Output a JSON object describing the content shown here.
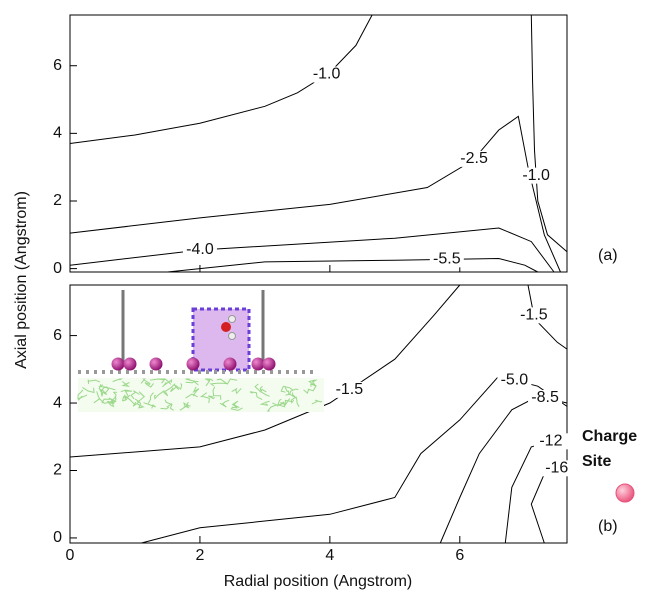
{
  "figure": {
    "xlabel": "Radial position (Angstrom)",
    "ylabel": "Axial position (Angstrom)",
    "legend_lines": [
      "Charge",
      "Site"
    ],
    "legend_color": "#e8507a"
  },
  "chart_data": [
    {
      "type": "contour",
      "panel_label": "(a)",
      "color": "#000000",
      "xlim": [
        0,
        7.65
      ],
      "ylim": [
        -0.1,
        7.5
      ],
      "xticks": [
        0,
        2,
        4,
        6
      ],
      "yticks": [
        0,
        2,
        4,
        6
      ],
      "contours": [
        {
          "level": {
            "value": -1,
            "label": "-1.0"
          },
          "x": [
            0,
            1,
            2,
            3,
            3.5,
            4,
            4.4,
            4.65
          ],
          "y": [
            3.7,
            3.95,
            4.3,
            4.8,
            5.2,
            5.8,
            6.6,
            7.5
          ]
        },
        {
          "level": {
            "value": -2.5,
            "label": "-2.5"
          },
          "x": [
            0,
            2,
            4,
            5.5,
            6.2,
            6.6,
            6.9,
            7.05,
            7.3,
            7.55
          ],
          "y": [
            1.05,
            1.5,
            1.9,
            2.4,
            3.2,
            4.1,
            4.5,
            3.0,
            1.0,
            -0.1
          ]
        },
        {
          "level": {
            "value": -1,
            "label": "-1.0"
          },
          "x": [
            7.1,
            7.12,
            7.15,
            7.2,
            7.35,
            7.65
          ],
          "y": [
            7.5,
            5.5,
            3.5,
            2.0,
            1.0,
            0.5
          ]
        },
        {
          "level": {
            "value": -4,
            "label": "-4.0"
          },
          "x": [
            0,
            2,
            5,
            6.6,
            7.1,
            7.45
          ],
          "y": [
            0.1,
            0.55,
            0.9,
            1.2,
            0.8,
            -0.1
          ]
        },
        {
          "level": {
            "value": -5.5,
            "label": "-5.5"
          },
          "x": [
            1.5,
            3,
            5,
            6.6,
            7.0,
            7.2
          ],
          "y": [
            -0.1,
            0.2,
            0.25,
            0.3,
            0.1,
            -0.1
          ]
        }
      ]
    },
    {
      "type": "contour",
      "panel_label": "(b)",
      "color": "#000000",
      "xlim": [
        0,
        7.65
      ],
      "ylim": [
        -0.15,
        7.5
      ],
      "xticks": [
        0,
        2,
        4,
        6
      ],
      "yticks": [
        0,
        2,
        4,
        6
      ],
      "contours": [
        {
          "level": {
            "value": -1.5,
            "label": "-1.5"
          },
          "x": [
            0,
            2,
            3,
            4,
            5,
            5.6,
            6.0
          ],
          "y": [
            2.4,
            2.7,
            3.2,
            4.0,
            5.3,
            6.6,
            7.5
          ]
        },
        {
          "level": {
            "value": -1.5,
            "label": "-1.5"
          },
          "x": [
            7.05,
            7.15,
            7.5,
            7.65
          ],
          "y": [
            7.5,
            6.5,
            5.8,
            5.6
          ]
        },
        {
          "level": {
            "value": -5,
            "label": "-5.0"
          },
          "x": [
            1.1,
            2,
            4,
            5,
            5.4,
            6,
            6.6,
            7.2,
            7.65
          ],
          "y": [
            -0.15,
            0.3,
            0.7,
            1.2,
            2.5,
            3.5,
            4.8,
            4.5,
            3.9
          ]
        },
        {
          "level": {
            "value": -8.5,
            "label": "-8.5"
          },
          "x": [
            5.7,
            6.0,
            6.3,
            6.8,
            7.2,
            7.65
          ],
          "y": [
            -0.15,
            1.2,
            2.5,
            3.8,
            4.2,
            4.0
          ]
        },
        {
          "level": {
            "value": -12,
            "label": "-12"
          },
          "x": [
            6.7,
            6.8,
            7.1,
            7.65
          ],
          "y": [
            -0.15,
            1.5,
            2.7,
            3.0
          ]
        },
        {
          "level": {
            "value": -16,
            "label": "-16"
          },
          "x": [
            7.3,
            7.1,
            7.3,
            7.65
          ],
          "y": [
            -0.15,
            1.0,
            1.9,
            2.2
          ]
        }
      ]
    }
  ]
}
